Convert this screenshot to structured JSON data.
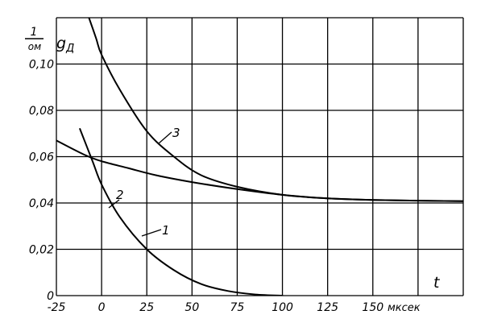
{
  "chart_data": {
    "type": "line",
    "title": "",
    "xlabel": "t",
    "x_unit": "мксек",
    "ylabel": "g_Д",
    "y_unit_num": "1",
    "y_unit_den": "ом",
    "xlim": [
      -25,
      200
    ],
    "ylim": [
      0,
      0.12
    ],
    "x_ticks": [
      "-25",
      "0",
      "25",
      "50",
      "75",
      "100",
      "125",
      "150"
    ],
    "x_tick_values": [
      -25,
      0,
      25,
      50,
      75,
      100,
      125,
      150
    ],
    "y_ticks": [
      "0",
      "0,02",
      "0,04",
      "0,06",
      "0,08",
      "0,10"
    ],
    "y_tick_values": [
      0,
      0.02,
      0.04,
      0.06,
      0.08,
      0.1
    ],
    "grid": true,
    "series": [
      {
        "name": "1",
        "x": [
          -12,
          -5,
          0,
          10,
          25,
          40,
          55,
          70,
          85,
          100
        ],
        "y": [
          0.072,
          0.058,
          0.048,
          0.034,
          0.02,
          0.011,
          0.005,
          0.002,
          0.0005,
          0.0
        ]
      },
      {
        "name": "2",
        "x": [
          -25,
          -10,
          0,
          15,
          30,
          50,
          75,
          100,
          125,
          150,
          175,
          200
        ],
        "y": [
          0.067,
          0.061,
          0.058,
          0.055,
          0.052,
          0.049,
          0.046,
          0.0435,
          0.042,
          0.0413,
          0.041,
          0.0408
        ]
      },
      {
        "name": "3",
        "x": [
          -7,
          -3,
          0,
          10,
          25,
          40,
          55,
          75,
          100,
          125,
          150,
          175,
          200
        ],
        "y": [
          0.12,
          0.111,
          0.104,
          0.089,
          0.071,
          0.06,
          0.052,
          0.047,
          0.0435,
          0.042,
          0.0413,
          0.041,
          0.0408
        ]
      }
    ]
  }
}
